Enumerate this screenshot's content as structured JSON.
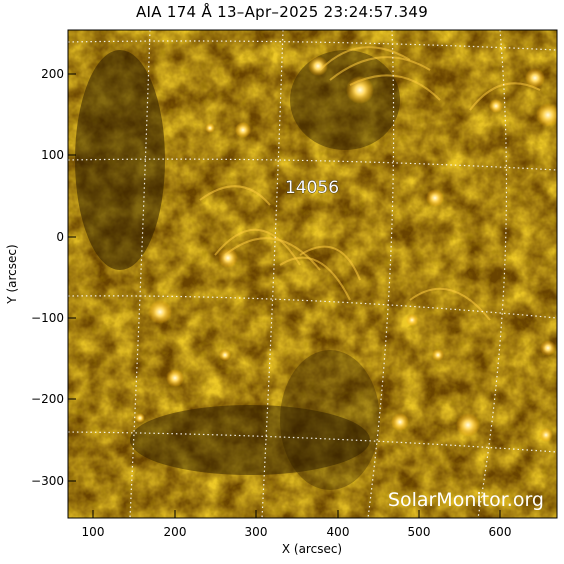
{
  "title": "AIA 174 Å 13–Apr–2025 23:24:57.349",
  "x_axis": {
    "label": "X (arcsec)",
    "ticks": [
      "100",
      "200",
      "300",
      "400",
      "500",
      "600"
    ]
  },
  "y_axis": {
    "label": "Y (arcsec)",
    "ticks": [
      "200",
      "100",
      "0",
      "−100",
      "−200",
      "−300"
    ]
  },
  "active_region": {
    "number": "14056"
  },
  "watermark": "SolarMonitor.org",
  "colors": {
    "dark": "#3a2600",
    "mid": "#8a5c00",
    "bright": "#e0a010",
    "hot": "#fff4c0",
    "grid": "#ffffff"
  }
}
